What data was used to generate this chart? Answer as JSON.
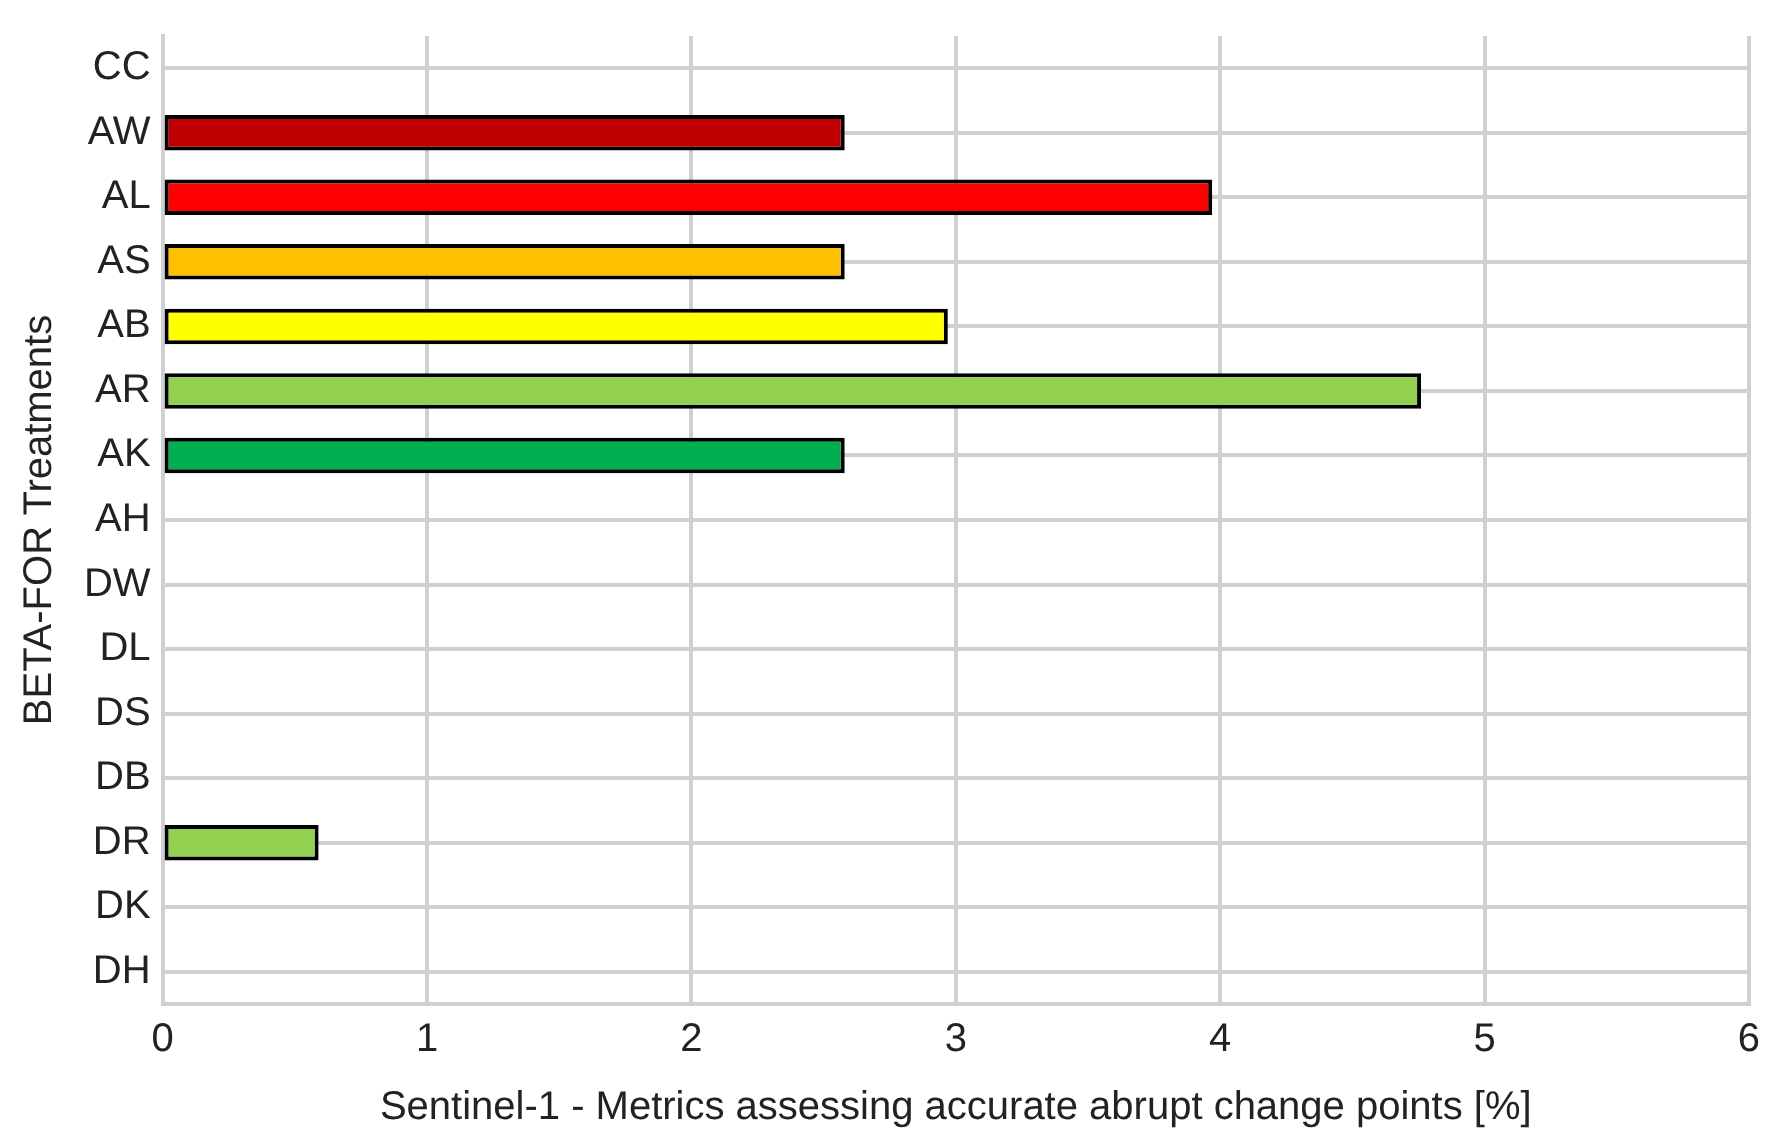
{
  "chart_data": {
    "type": "bar",
    "orientation": "horizontal",
    "xlabel": "Sentinel-1 - Metrics assessing accurate abrupt change points [%]",
    "ylabel": "BETA-FOR Treatments",
    "categories": [
      "CC",
      "AW",
      "AL",
      "AS",
      "AB",
      "AR",
      "AK",
      "AH",
      "DW",
      "DL",
      "DS",
      "DB",
      "DR",
      "DK",
      "DH"
    ],
    "values": [
      null,
      2.58,
      3.97,
      2.58,
      2.97,
      4.76,
      2.58,
      null,
      null,
      null,
      null,
      null,
      0.59,
      null,
      null
    ],
    "colors": [
      "#92d050",
      "#c00000",
      "#ff0000",
      "#ffc000",
      "#ffff00",
      "#92d050",
      "#00b050",
      "#92d050",
      "#92d050",
      "#92d050",
      "#92d050",
      "#92d050",
      "#92d050",
      "#92d050",
      "#92d050"
    ],
    "xlim": [
      0,
      6
    ],
    "xticks": [
      0,
      1,
      2,
      3,
      4,
      5,
      6
    ],
    "grid": true,
    "legend": false
  }
}
